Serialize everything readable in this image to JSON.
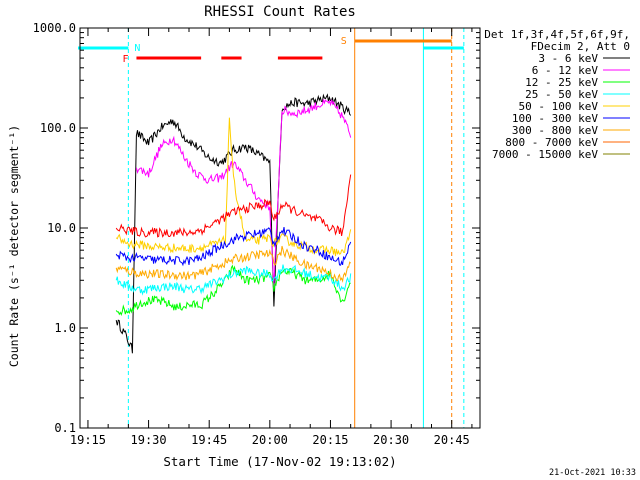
{
  "chart_data": {
    "type": "line",
    "title": "RHESSI Count Rates",
    "xlabel": "Start Time (17-Nov-02 19:13:02)",
    "ylabel": "Count Rate (s⁻¹ detector segment⁻¹)",
    "y_scale": "log",
    "ylim": [
      0.1,
      1000
    ],
    "xlim": [
      "19:13:02",
      "20:52:00"
    ],
    "x_ticks": [
      "19:15",
      "19:30",
      "19:45",
      "20:00",
      "20:15",
      "20:30",
      "20:45"
    ],
    "y_ticks": [
      "0.1",
      "1.0",
      "10.0",
      "100.0",
      "1000.0"
    ],
    "legend_header": [
      "Det 1f,3f,4f,5f,6f,9f,",
      "FDecim 2, Att 0"
    ],
    "legend_position": "right",
    "footer": "21-Oct-2021 10:33",
    "series": [
      {
        "name": "3 - 6 keV",
        "color": "#000000",
        "points": [
          [
            "19:22",
            1.2
          ],
          [
            "19:24",
            0.9
          ],
          [
            "19:26",
            0.6
          ],
          [
            "19:27",
            90
          ],
          [
            "19:30",
            70
          ],
          [
            "19:33",
            100
          ],
          [
            "19:36",
            120
          ],
          [
            "19:39",
            80
          ],
          [
            "19:42",
            65
          ],
          [
            "19:45",
            50
          ],
          [
            "19:48",
            45
          ],
          [
            "19:51",
            60
          ],
          [
            "19:54",
            65
          ],
          [
            "19:57",
            55
          ],
          [
            "20:00",
            45
          ],
          [
            "20:01",
            1.7
          ],
          [
            "20:03",
            160
          ],
          [
            "20:06",
            180
          ],
          [
            "20:09",
            175
          ],
          [
            "20:12",
            190
          ],
          [
            "20:15",
            200
          ],
          [
            "20:18",
            160
          ],
          [
            "20:20",
            140
          ]
        ]
      },
      {
        "name": "6 - 12 keV",
        "color": "#ff00ff",
        "points": [
          [
            "19:27",
            40
          ],
          [
            "19:30",
            35
          ],
          [
            "19:33",
            65
          ],
          [
            "19:36",
            80
          ],
          [
            "19:39",
            50
          ],
          [
            "19:42",
            35
          ],
          [
            "19:45",
            30
          ],
          [
            "19:48",
            32
          ],
          [
            "19:51",
            45
          ],
          [
            "19:54",
            30
          ],
          [
            "19:57",
            20
          ],
          [
            "20:00",
            16
          ],
          [
            "20:01",
            2.5
          ],
          [
            "20:03",
            150
          ],
          [
            "20:06",
            140
          ],
          [
            "20:09",
            150
          ],
          [
            "20:12",
            170
          ],
          [
            "20:15",
            180
          ],
          [
            "20:18",
            130
          ],
          [
            "20:20",
            85
          ]
        ]
      },
      {
        "name": "12 - 25 keV",
        "color": "#00ff00",
        "points": [
          [
            "19:22",
            1.5
          ],
          [
            "19:25",
            1.5
          ],
          [
            "19:28",
            1.8
          ],
          [
            "19:31",
            1.9
          ],
          [
            "19:34",
            1.8
          ],
          [
            "19:37",
            1.6
          ],
          [
            "19:40",
            1.7
          ],
          [
            "19:43",
            1.7
          ],
          [
            "19:46",
            2.2
          ],
          [
            "19:49",
            3
          ],
          [
            "19:51",
            4
          ],
          [
            "19:54",
            3
          ],
          [
            "19:57",
            3
          ],
          [
            "20:00",
            3.3
          ],
          [
            "20:01",
            2.5
          ],
          [
            "20:03",
            3.8
          ],
          [
            "20:06",
            3.5
          ],
          [
            "20:09",
            3
          ],
          [
            "20:12",
            3
          ],
          [
            "20:15",
            3.5
          ],
          [
            "20:18",
            1.8
          ],
          [
            "20:20",
            3
          ]
        ]
      },
      {
        "name": "25 - 50 keV",
        "color": "#00ffff",
        "points": [
          [
            "19:22",
            3
          ],
          [
            "19:25",
            2.6
          ],
          [
            "19:28",
            2.4
          ],
          [
            "19:31",
            2.5
          ],
          [
            "19:34",
            2.6
          ],
          [
            "19:37",
            2.6
          ],
          [
            "19:40",
            2.4
          ],
          [
            "19:43",
            2.5
          ],
          [
            "19:46",
            2.8
          ],
          [
            "19:49",
            3.2
          ],
          [
            "19:51",
            3.5
          ],
          [
            "19:54",
            3.8
          ],
          [
            "19:57",
            3.5
          ],
          [
            "20:00",
            3.5
          ],
          [
            "20:01",
            3
          ],
          [
            "20:03",
            4
          ],
          [
            "20:06",
            3.8
          ],
          [
            "20:09",
            3.5
          ],
          [
            "20:12",
            3.2
          ],
          [
            "20:15",
            3.2
          ],
          [
            "20:18",
            2.5
          ],
          [
            "20:20",
            3.2
          ]
        ]
      },
      {
        "name": "50 - 100 keV",
        "color": "#ffd000",
        "points": [
          [
            "19:22",
            8
          ],
          [
            "19:25",
            7
          ],
          [
            "19:28",
            6.8
          ],
          [
            "19:31",
            6.5
          ],
          [
            "19:34",
            6.4
          ],
          [
            "19:37",
            6.3
          ],
          [
            "19:40",
            6.2
          ],
          [
            "19:43",
            6.4
          ],
          [
            "19:46",
            6.8
          ],
          [
            "19:49",
            7.5
          ],
          [
            "19:50",
            130
          ],
          [
            "19:51",
            30
          ],
          [
            "19:54",
            7.5
          ],
          [
            "19:57",
            7.5
          ],
          [
            "20:00",
            8
          ],
          [
            "20:01",
            7
          ],
          [
            "20:03",
            8
          ],
          [
            "20:06",
            7
          ],
          [
            "20:09",
            6.5
          ],
          [
            "20:12",
            6
          ],
          [
            "20:15",
            6
          ],
          [
            "20:18",
            5.5
          ],
          [
            "20:20",
            9
          ]
        ]
      },
      {
        "name": "100 - 300 keV",
        "color": "#0000ff",
        "points": [
          [
            "19:22",
            5.5
          ],
          [
            "19:25",
            5
          ],
          [
            "19:28",
            5
          ],
          [
            "19:31",
            4.8
          ],
          [
            "19:34",
            4.8
          ],
          [
            "19:37",
            4.7
          ],
          [
            "19:40",
            4.7
          ],
          [
            "19:43",
            5
          ],
          [
            "19:46",
            6
          ],
          [
            "19:49",
            7
          ],
          [
            "19:52",
            8
          ],
          [
            "19:55",
            8.5
          ],
          [
            "19:58",
            9
          ],
          [
            "20:00",
            9.5
          ],
          [
            "20:01",
            7
          ],
          [
            "20:03",
            9.5
          ],
          [
            "20:06",
            8
          ],
          [
            "20:09",
            6.5
          ],
          [
            "20:12",
            6
          ],
          [
            "20:15",
            5
          ],
          [
            "20:18",
            4.5
          ],
          [
            "20:20",
            7
          ]
        ]
      },
      {
        "name": "300 - 800 keV",
        "color": "#ffaa00",
        "points": [
          [
            "19:22",
            4
          ],
          [
            "19:25",
            3.7
          ],
          [
            "19:28",
            3.5
          ],
          [
            "19:31",
            3.5
          ],
          [
            "19:34",
            3.4
          ],
          [
            "19:37",
            3.4
          ],
          [
            "19:40",
            3.3
          ],
          [
            "19:43",
            3.5
          ],
          [
            "19:46",
            4
          ],
          [
            "19:49",
            4.5
          ],
          [
            "19:52",
            5
          ],
          [
            "19:55",
            5.2
          ],
          [
            "19:58",
            5.5
          ],
          [
            "20:00",
            5.5
          ],
          [
            "20:01",
            4.5
          ],
          [
            "20:03",
            6
          ],
          [
            "20:06",
            5
          ],
          [
            "20:09",
            4.2
          ],
          [
            "20:12",
            4
          ],
          [
            "20:15",
            3.5
          ],
          [
            "20:18",
            3
          ],
          [
            "20:20",
            4.5
          ]
        ]
      },
      {
        "name": "800 - 7000 keV",
        "color": "#ff6600",
        "points": []
      },
      {
        "name": "7000 - 15000 keV",
        "color": "#808000",
        "points": []
      },
      {
        "name": "",
        "color": "#ff0000",
        "legend": false,
        "points": [
          [
            "19:22",
            10
          ],
          [
            "19:25",
            9.5
          ],
          [
            "19:28",
            9
          ],
          [
            "19:31",
            9
          ],
          [
            "19:34",
            9
          ],
          [
            "19:37",
            9
          ],
          [
            "19:40",
            9
          ],
          [
            "19:43",
            9.5
          ],
          [
            "19:46",
            11
          ],
          [
            "19:49",
            13
          ],
          [
            "19:52",
            15
          ],
          [
            "19:55",
            16
          ],
          [
            "19:58",
            17
          ],
          [
            "20:00",
            18
          ],
          [
            "20:01",
            12
          ],
          [
            "20:03",
            17
          ],
          [
            "20:06",
            15
          ],
          [
            "20:09",
            13
          ],
          [
            "20:12",
            12
          ],
          [
            "20:15",
            10
          ],
          [
            "20:18",
            9
          ],
          [
            "20:20",
            35
          ]
        ]
      }
    ],
    "annotations": {
      "attenuator_F_label": "F",
      "attenuator_F_segments": [
        [
          "19:27",
          "19:43"
        ],
        [
          "19:48",
          "19:53"
        ],
        [
          "20:02",
          "20:13"
        ]
      ],
      "N_label": "N",
      "S_label": "S",
      "night_periods": [
        [
          "19:13:02",
          "19:25"
        ],
        [
          "20:38",
          "20:48"
        ]
      ],
      "saa_period": [
        "20:21",
        "20:45"
      ]
    },
    "colors": {
      "night": "#00ffff",
      "attenuator": "#ff0000",
      "saa": "#ff8000"
    }
  }
}
